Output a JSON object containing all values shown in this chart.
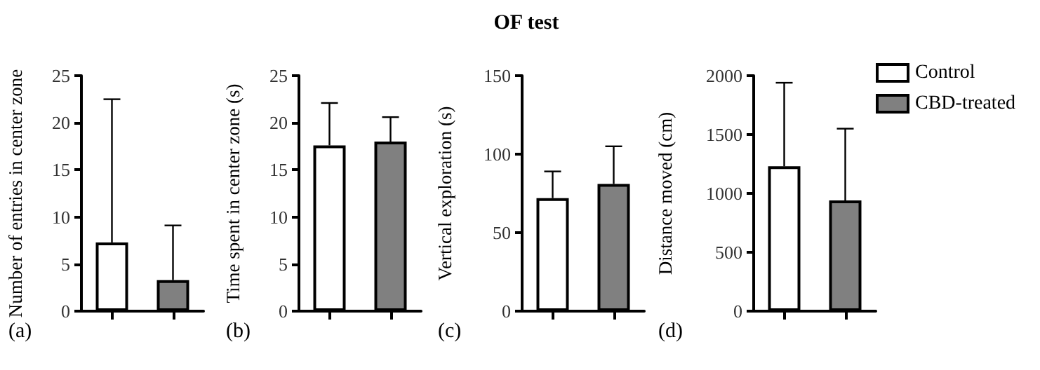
{
  "chart_data": [
    {
      "type": "bar",
      "categories": [
        null,
        null
      ],
      "ylabel": "Number of entries in center zone",
      "annotations": [
        "(a)"
      ],
      "ylim": [
        0,
        25
      ],
      "yticks": [
        0,
        5,
        10,
        15,
        20,
        25
      ],
      "grid": false,
      "legend": false,
      "tick_labels": "y",
      "series": [
        {
          "color": "#ffffff",
          "values": [
            7.3,
            null
          ],
          "errors": [
            [
              7.3,
              22.5
            ],
            null
          ]
        },
        {
          "color": "#808080",
          "values": [
            null,
            3.3
          ],
          "errors": [
            null,
            [
              3.3,
              9.1
            ]
          ]
        }
      ]
    },
    {
      "type": "bar",
      "categories": [
        null,
        null
      ],
      "ylabel": "Time spent in center zone (s)",
      "annotations": [
        "(b)"
      ],
      "ylim": [
        0,
        25
      ],
      "yticks": [
        0,
        5,
        10,
        15,
        20,
        25
      ],
      "grid": false,
      "legend": false,
      "tick_labels": "y",
      "series": [
        {
          "color": "#ffffff",
          "values": [
            17.6,
            null
          ],
          "errors": [
            [
              17.6,
              22.1
            ],
            null
          ]
        },
        {
          "color": "#808080",
          "values": [
            null,
            18.0
          ],
          "errors": [
            null,
            [
              18.0,
              20.6
            ]
          ]
        }
      ]
    },
    {
      "type": "bar",
      "title": "OF test",
      "categories": [
        null,
        null
      ],
      "ylabel": "Vertical exploration (s)",
      "annotations": [
        "(c)"
      ],
      "ylim": [
        0,
        150
      ],
      "yticks": [
        0,
        50,
        100,
        150
      ],
      "grid": false,
      "legend": false,
      "tick_labels": "y",
      "series": [
        {
          "color": "#ffffff",
          "values": [
            72,
            null
          ],
          "errors": [
            [
              72,
              89
            ],
            null
          ]
        },
        {
          "color": "#808080",
          "values": [
            null,
            81
          ],
          "errors": [
            null,
            [
              81,
              105
            ]
          ]
        }
      ]
    },
    {
      "type": "bar",
      "categories": [
        null,
        null
      ],
      "ylabel": "Distance moved (cm)",
      "annotations": [
        "(d)"
      ],
      "ylim": [
        0,
        2000
      ],
      "yticks": [
        0,
        500,
        1000,
        1500,
        2000
      ],
      "grid": false,
      "legend": "top right",
      "tick_labels": "y",
      "series": [
        {
          "name": "Control",
          "color": "#ffffff",
          "values": [
            1230,
            null
          ],
          "errors": [
            [
              1230,
              1940
            ],
            null
          ]
        },
        {
          "name": "CBD-treated",
          "color": "#808080",
          "values": [
            null,
            940
          ],
          "errors": [
            null,
            [
              940,
              1550
            ]
          ]
        }
      ]
    }
  ]
}
